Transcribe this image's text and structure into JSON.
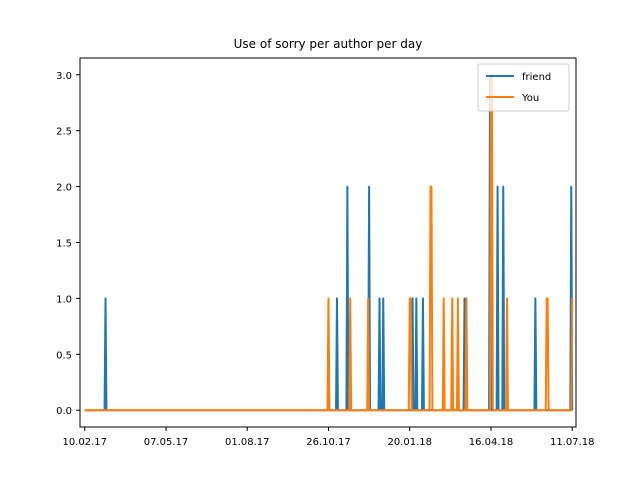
{
  "chart_data": {
    "type": "line",
    "title": "Use of sorry per author per day",
    "xlabel": "",
    "ylabel": "",
    "x_axis": "date",
    "xlim": [
      "2017-02-05",
      "2018-07-15"
    ],
    "ylim": [
      -0.15,
      3.15
    ],
    "x_ticks": [
      {
        "date": "2017-02-10",
        "label": "10.02.17"
      },
      {
        "date": "2017-05-07",
        "label": "07.05.17"
      },
      {
        "date": "2017-08-01",
        "label": "01.08.17"
      },
      {
        "date": "2017-10-26",
        "label": "26.10.17"
      },
      {
        "date": "2018-01-20",
        "label": "20.01.18"
      },
      {
        "date": "2018-04-16",
        "label": "16.04.18"
      },
      {
        "date": "2018-07-11",
        "label": "11.07.18"
      }
    ],
    "y_ticks": [
      {
        "value": 0.0,
        "label": "0.0"
      },
      {
        "value": 0.5,
        "label": "0.5"
      },
      {
        "value": 1.0,
        "label": "1.0"
      },
      {
        "value": 1.5,
        "label": "1.5"
      },
      {
        "value": 2.0,
        "label": "2.0"
      },
      {
        "value": 2.5,
        "label": "2.5"
      },
      {
        "value": 3.0,
        "label": "3.0"
      }
    ],
    "legend": {
      "position": "top-right"
    },
    "series": [
      {
        "name": "friend",
        "color": "#1f77b4",
        "start": "2017-02-10",
        "end": "2018-07-11",
        "points": [
          {
            "date": "2017-03-04",
            "value": 1
          },
          {
            "date": "2017-11-04",
            "value": 1
          },
          {
            "date": "2017-11-15",
            "value": 2
          },
          {
            "date": "2017-12-08",
            "value": 2
          },
          {
            "date": "2017-12-19",
            "value": 1
          },
          {
            "date": "2017-12-23",
            "value": 1
          },
          {
            "date": "2018-01-23",
            "value": 1
          },
          {
            "date": "2018-01-27",
            "value": 1
          },
          {
            "date": "2018-02-03",
            "value": 1
          },
          {
            "date": "2018-03-19",
            "value": 1
          },
          {
            "date": "2018-04-15",
            "value": 3
          },
          {
            "date": "2018-04-23",
            "value": 2
          },
          {
            "date": "2018-04-29",
            "value": 2
          },
          {
            "date": "2018-06-02",
            "value": 1
          },
          {
            "date": "2018-07-10",
            "value": 2
          }
        ]
      },
      {
        "name": "You",
        "color": "#ff7f0e",
        "start": "2017-02-10",
        "end": "2018-07-11",
        "points": [
          {
            "date": "2017-10-26",
            "value": 1
          },
          {
            "date": "2017-11-18",
            "value": 1
          },
          {
            "date": "2017-12-07",
            "value": 1
          },
          {
            "date": "2018-01-20",
            "value": 1
          },
          {
            "date": "2018-01-21",
            "value": 1
          },
          {
            "date": "2018-02-11",
            "value": 2
          },
          {
            "date": "2018-02-12",
            "value": 2
          },
          {
            "date": "2018-02-25",
            "value": 1
          },
          {
            "date": "2018-03-06",
            "value": 1
          },
          {
            "date": "2018-03-12",
            "value": 1
          },
          {
            "date": "2018-03-21",
            "value": 1
          },
          {
            "date": "2018-04-16",
            "value": 3
          },
          {
            "date": "2018-04-17",
            "value": 3
          },
          {
            "date": "2018-05-03",
            "value": 1
          },
          {
            "date": "2018-06-14",
            "value": 1
          },
          {
            "date": "2018-06-15",
            "value": 1
          },
          {
            "date": "2018-07-11",
            "value": 1
          }
        ]
      }
    ]
  }
}
